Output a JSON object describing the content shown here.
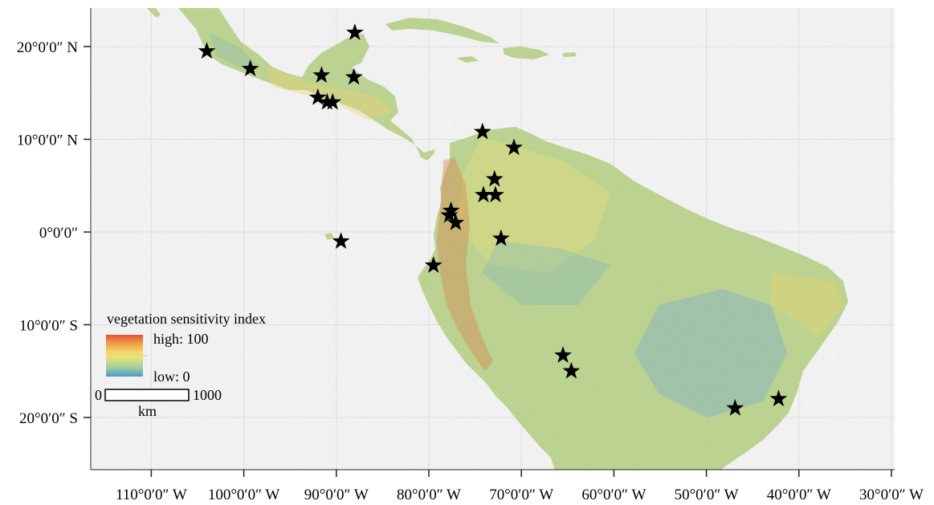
{
  "map": {
    "legend": {
      "title": "vegetation sensitivity index",
      "high_label": "high: 100",
      "low_label": "low: 0",
      "colors": [
        "#e2513a",
        "#ee8a44",
        "#f3b654",
        "#f4d86a",
        "#e4e07a",
        "#c4d98c",
        "#9ccaa0",
        "#72b3ba",
        "#4f97c6"
      ]
    },
    "scale_bar": {
      "start": "0",
      "end": "1000",
      "unit": "km"
    },
    "lat_labels": [
      {
        "deg": 20,
        "label": "20°0′0″ N"
      },
      {
        "deg": 10,
        "label": "10°0′0″ N"
      },
      {
        "deg": 0,
        "label": "0°0′0″"
      },
      {
        "deg": -10,
        "label": "10°0′0″ S"
      },
      {
        "deg": -20,
        "label": "20°0′0″ S"
      }
    ],
    "lon_labels": [
      {
        "deg": -110,
        "label": "110°0′0″ W"
      },
      {
        "deg": -100,
        "label": "100°0′0″ W"
      },
      {
        "deg": -90,
        "label": "90°0′0″ W"
      },
      {
        "deg": -80,
        "label": "80°0′0″ W"
      },
      {
        "deg": -70,
        "label": "70°0′0″ W"
      },
      {
        "deg": -60,
        "label": "60°0′0″ W"
      },
      {
        "deg": -50,
        "label": "50°0′0″ W"
      },
      {
        "deg": -40,
        "label": "40°0′0″ W"
      },
      {
        "deg": -30,
        "label": "30°0′0″ W"
      }
    ],
    "colors": {
      "land": "#bcd48e",
      "panel": "#f6f6f6",
      "grid": "#e2e2e2",
      "star": "#000000"
    },
    "sites": [
      {
        "lon": -104.0,
        "lat": 19.5
      },
      {
        "lon": -99.3,
        "lat": 17.6
      },
      {
        "lon": -88.0,
        "lat": 21.5
      },
      {
        "lon": -91.6,
        "lat": 16.9
      },
      {
        "lon": -88.1,
        "lat": 16.7
      },
      {
        "lon": -92.0,
        "lat": 14.5
      },
      {
        "lon": -91.0,
        "lat": 14.0
      },
      {
        "lon": -90.4,
        "lat": 14.0
      },
      {
        "lon": -74.2,
        "lat": 10.8
      },
      {
        "lon": -70.8,
        "lat": 9.1
      },
      {
        "lon": -72.9,
        "lat": 5.7
      },
      {
        "lon": -74.1,
        "lat": 4.0
      },
      {
        "lon": -72.8,
        "lat": 4.0
      },
      {
        "lon": -77.6,
        "lat": 2.3
      },
      {
        "lon": -77.8,
        "lat": 1.8
      },
      {
        "lon": -77.1,
        "lat": 1.0
      },
      {
        "lon": -89.5,
        "lat": -1.0
      },
      {
        "lon": -72.2,
        "lat": -0.7
      },
      {
        "lon": -79.5,
        "lat": -3.6
      },
      {
        "lon": -65.5,
        "lat": -13.3
      },
      {
        "lon": -64.6,
        "lat": -15.0
      },
      {
        "lon": -46.9,
        "lat": -19.0
      },
      {
        "lon": -42.2,
        "lat": -18.0
      }
    ]
  }
}
